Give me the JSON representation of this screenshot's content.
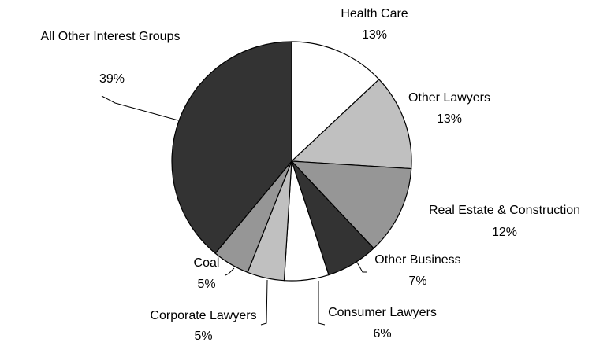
{
  "chart_data": {
    "type": "pie",
    "categories": [
      "Health Care",
      "Other Lawyers",
      "Real Estate & Construction",
      "Other Business",
      "Consumer Lawyers",
      "Corporate Lawyers",
      "Coal",
      "All Other Interest Groups"
    ],
    "values": [
      13,
      13,
      12,
      7,
      6,
      5,
      5,
      39
    ],
    "value_labels": [
      "13%",
      "13%",
      "12%",
      "7%",
      "6%",
      "5%",
      "5%",
      "39%"
    ],
    "colors": [
      "#ffffff",
      "#c0c0c0",
      "#969696",
      "#333333",
      "#ffffff",
      "#c0c0c0",
      "#969696",
      "#333333"
    ]
  }
}
